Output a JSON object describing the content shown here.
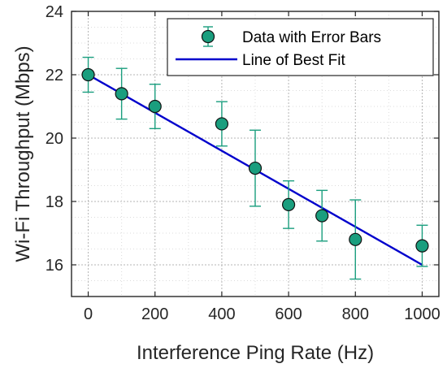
{
  "chart_data": {
    "type": "scatter",
    "title": "",
    "xlabel": "Interference Ping Rate (Hz)",
    "ylabel": "Wi-Fi Throughput (Mbps)",
    "xlim": [
      -50,
      1050
    ],
    "ylim": [
      15,
      24
    ],
    "xticks": [
      0,
      200,
      400,
      600,
      800,
      1000
    ],
    "yticks": [
      16,
      18,
      20,
      22,
      24
    ],
    "xtick_labels": [
      "0",
      "200",
      "400",
      "600",
      "800",
      "1000"
    ],
    "ytick_labels": [
      "16",
      "18",
      "20",
      "22",
      "24"
    ],
    "grid": "on (major + minor, dotted)",
    "legend_position": "top-right",
    "series": [
      {
        "name": "Data with Error Bars",
        "kind": "errorbar",
        "marker_color": "#1a9e7e",
        "error_color": "#1a9e7e",
        "x": [
          0,
          100,
          200,
          400,
          500,
          600,
          700,
          800,
          1000
        ],
        "y": [
          22.0,
          21.4,
          21.0,
          20.45,
          19.05,
          17.9,
          17.55,
          16.8,
          16.6
        ],
        "err_low": [
          0.55,
          0.8,
          0.7,
          0.7,
          1.2,
          0.75,
          0.8,
          1.25,
          0.65
        ],
        "err_high": [
          0.55,
          0.8,
          0.7,
          0.7,
          1.2,
          0.75,
          0.8,
          1.25,
          0.65
        ]
      },
      {
        "name": "Line of Best Fit",
        "kind": "line",
        "line_color": "#0000cc",
        "x": [
          0,
          1000
        ],
        "y": [
          22.0,
          16.0
        ]
      }
    ]
  }
}
